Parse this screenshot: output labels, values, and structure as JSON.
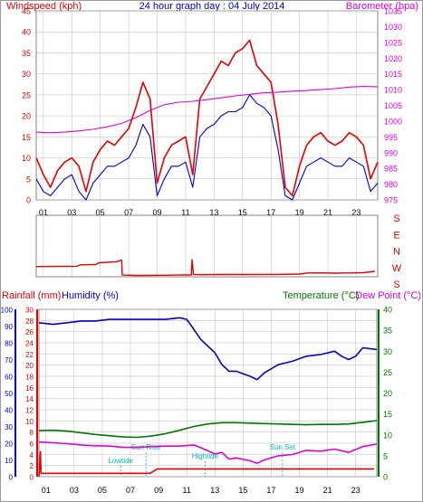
{
  "colors": {
    "red": "#e60000",
    "blue": "#0000cc",
    "magenta": "#dd00dd",
    "green": "#007700",
    "cyan": "#00bbbb",
    "grid": "#bbbbbb"
  },
  "header": {
    "left_label": "Windspeed (kph)",
    "title": "24 hour graph day : 04 July 2014",
    "right_label": "Barometer (hpa)"
  },
  "bottom_header": {
    "rainfall_label": "Rainfall (mm)",
    "humidity_label": "Humidity (%)",
    "temperature_label": "Temperature (°C)",
    "dewpoint_label": "Dew Point (°C)"
  },
  "chart_data": [
    {
      "type": "line",
      "name": "windspeed_and_barometer",
      "x_ticks": [
        "01",
        "03",
        "05",
        "07",
        "09",
        "11",
        "13",
        "15",
        "17",
        "19",
        "21",
        "23"
      ],
      "xlim": [
        0,
        24
      ],
      "ylim_left": [
        0,
        45
      ],
      "yticks_left": [
        0,
        5,
        10,
        15,
        20,
        25,
        30,
        35,
        40,
        45
      ],
      "ylim_right": [
        975,
        1035
      ],
      "yticks_right": [
        975,
        980,
        985,
        990,
        995,
        1000,
        1005,
        1010,
        1015,
        1020,
        1025,
        1030,
        1035
      ],
      "series": [
        {
          "name": "Windspeed",
          "axis": "left",
          "color": "#0000cc",
          "x": [
            0,
            0.5,
            1,
            1.5,
            2,
            2.5,
            3,
            3.5,
            4,
            4.5,
            5,
            5.5,
            6,
            6.5,
            7,
            7.5,
            8,
            8.5,
            9,
            9.5,
            10,
            10.5,
            11,
            11.5,
            12,
            12.5,
            13,
            13.5,
            14,
            14.5,
            15,
            15.5,
            16,
            16.5,
            17,
            17.5,
            18,
            18.5,
            19,
            19.5,
            20,
            20.5,
            21,
            21.5,
            22,
            22.5,
            23,
            23.5,
            24
          ],
          "values": [
            5,
            2,
            1,
            3,
            5,
            6,
            2,
            0,
            4,
            6,
            8,
            8,
            9,
            10,
            13,
            18,
            15,
            1,
            5,
            8,
            8,
            9,
            3,
            15,
            17,
            18,
            20,
            21,
            21,
            22,
            25,
            23,
            22,
            20,
            12,
            1,
            0,
            4,
            8,
            9,
            10,
            9,
            8,
            8,
            10,
            9,
            8,
            2,
            4
          ]
        },
        {
          "name": "Gust",
          "axis": "left",
          "color": "#e60000",
          "x": [
            0,
            0.5,
            1,
            1.5,
            2,
            2.5,
            3,
            3.5,
            4,
            4.5,
            5,
            5.5,
            6,
            6.5,
            7,
            7.5,
            8,
            8.5,
            9,
            9.5,
            10,
            10.5,
            11,
            11.5,
            12,
            12.5,
            13,
            13.5,
            14,
            14.5,
            15,
            15.5,
            16,
            16.5,
            17,
            17.5,
            18,
            18.5,
            19,
            19.5,
            20,
            20.5,
            21,
            21.5,
            22,
            22.5,
            23,
            23.5,
            24
          ],
          "values": [
            10,
            6,
            3,
            7,
            9,
            10,
            8,
            2,
            9,
            12,
            14,
            13,
            15,
            17,
            22,
            28,
            24,
            4,
            10,
            13,
            14,
            15,
            6,
            24,
            27,
            30,
            33,
            32,
            35,
            36,
            38,
            32,
            30,
            28,
            18,
            3,
            1,
            8,
            13,
            15,
            16,
            14,
            13,
            14,
            16,
            15,
            13,
            5,
            9
          ]
        },
        {
          "name": "Barometer",
          "axis": "right",
          "color": "#dd00dd",
          "x": [
            0,
            1,
            2,
            3,
            4,
            5,
            6,
            7,
            8,
            9,
            10,
            11,
            12,
            13,
            14,
            15,
            16,
            17,
            18,
            19,
            20,
            21,
            22,
            23,
            24
          ],
          "values": [
            996.5,
            996.3,
            996.5,
            996.9,
            997.4,
            998.2,
            999.3,
            1001.1,
            1003.4,
            1005.2,
            1006.0,
            1006.3,
            1006.8,
            1007.4,
            1008.0,
            1008.5,
            1009.0,
            1009.2,
            1009.5,
            1009.7,
            1010.0,
            1010.3,
            1010.8,
            1011.0,
            1010.9
          ]
        }
      ]
    },
    {
      "type": "line",
      "name": "wind_direction",
      "x_ticks": [
        "01",
        "03",
        "05",
        "07",
        "09",
        "11",
        "13",
        "15",
        "17",
        "19",
        "21",
        "23"
      ],
      "xlim": [
        0,
        24
      ],
      "y_categories": [
        "S",
        "E",
        "N",
        "W",
        "S"
      ],
      "ylim": [
        0,
        360
      ],
      "series": [
        {
          "name": "Direction",
          "color": "#e60000",
          "x": [
            0,
            2.9,
            3.1,
            4.2,
            4.4,
            5.6,
            5.9,
            6.0,
            6.05,
            7,
            9,
            10.5,
            10.9,
            10.95,
            11.05,
            11.5,
            13,
            15,
            17,
            18.5,
            19,
            20,
            21,
            22,
            23,
            23.8
          ],
          "values": [
            60,
            62,
            70,
            72,
            82,
            88,
            96,
            97,
            10,
            8,
            9,
            11,
            10,
            100,
            14,
            12,
            13,
            13,
            14,
            16,
            22,
            23,
            21,
            22,
            24,
            32
          ]
        }
      ]
    },
    {
      "type": "line",
      "name": "rain_humidity_temperature",
      "x_ticks": [
        "01",
        "03",
        "05",
        "07",
        "09",
        "11",
        "13",
        "15",
        "17",
        "19",
        "21",
        "23"
      ],
      "xlim": [
        0,
        24
      ],
      "ylim_humidity": [
        0,
        100
      ],
      "yticks_humidity": [
        0,
        10,
        20,
        30,
        40,
        50,
        60,
        70,
        80,
        90,
        100
      ],
      "ylim_rain": [
        0,
        30
      ],
      "yticks_rain": [
        0,
        2,
        4,
        6,
        8,
        10,
        12,
        14,
        16,
        18,
        20,
        22,
        24,
        26,
        28,
        30
      ],
      "ylim_temperature": [
        0,
        40
      ],
      "yticks_temperature": [
        0,
        5,
        10,
        15,
        20,
        25,
        30,
        35,
        40
      ],
      "annotations": [
        {
          "label": "Lowtide",
          "x": 5.8
        },
        {
          "label": "Sun Rise",
          "x": 7.6
        },
        {
          "label": "Hightide",
          "x": 11.8
        },
        {
          "label": "Sun Set",
          "x": 17.3
        }
      ],
      "series": [
        {
          "name": "Humidity",
          "axis": "humidity",
          "color": "#0000cc",
          "x": [
            0,
            1,
            2,
            3,
            4,
            5,
            6,
            7,
            8,
            9,
            10,
            10.5,
            11,
            11.5,
            12,
            12.5,
            13,
            13.5,
            14,
            15,
            15.5,
            16,
            17,
            18,
            19,
            20,
            21,
            21.5,
            22,
            22.5,
            23,
            24
          ],
          "values": [
            92,
            91,
            92,
            93,
            93,
            94,
            94,
            94,
            94,
            94,
            95,
            94,
            88,
            82,
            78,
            74,
            67,
            63,
            63,
            60,
            58,
            62,
            67,
            69,
            72,
            73,
            75,
            72,
            70,
            72,
            77,
            76
          ]
        },
        {
          "name": "Rainfall",
          "axis": "rain",
          "color": "#e60000",
          "x": [
            0,
            0.1,
            0.15,
            7.9,
            8.4,
            11,
            14,
            17,
            20,
            23.8
          ],
          "values": [
            0,
            4.5,
            0.6,
            0.6,
            1.4,
            1.4,
            1.4,
            1.4,
            1.4,
            1.4
          ]
        },
        {
          "name": "Temperature",
          "axis": "temperature",
          "color": "#007700",
          "x": [
            0,
            1,
            2,
            3,
            4,
            5,
            6,
            7,
            8,
            9,
            10,
            11,
            12,
            13,
            14,
            15,
            16,
            17,
            18,
            19,
            20,
            21,
            22,
            23,
            24
          ],
          "values": [
            11.0,
            11.1,
            10.9,
            10.5,
            10.1,
            9.8,
            9.5,
            9.4,
            9.7,
            10.3,
            11.1,
            12.0,
            12.6,
            12.9,
            12.9,
            12.8,
            12.7,
            12.6,
            12.5,
            12.4,
            12.5,
            12.5,
            12.6,
            13.0,
            13.4
          ]
        },
        {
          "name": "Dew Point",
          "axis": "temperature",
          "color": "#dd00dd",
          "x": [
            0,
            1,
            2,
            3,
            4,
            5,
            6,
            7,
            8,
            9,
            10,
            11,
            12,
            12.5,
            13,
            13.5,
            14,
            15,
            15.5,
            16,
            17,
            18,
            19,
            20,
            21,
            22,
            23,
            24
          ],
          "values": [
            8.3,
            8.1,
            7.9,
            7.6,
            7.4,
            7.3,
            7.0,
            7.0,
            7.2,
            7.3,
            7.3,
            7.6,
            6.2,
            5.4,
            5.8,
            4.2,
            4.5,
            3.8,
            3.2,
            4.0,
            5.0,
            5.3,
            6.3,
            6.1,
            6.6,
            5.8,
            7.2,
            7.8
          ]
        }
      ]
    }
  ]
}
